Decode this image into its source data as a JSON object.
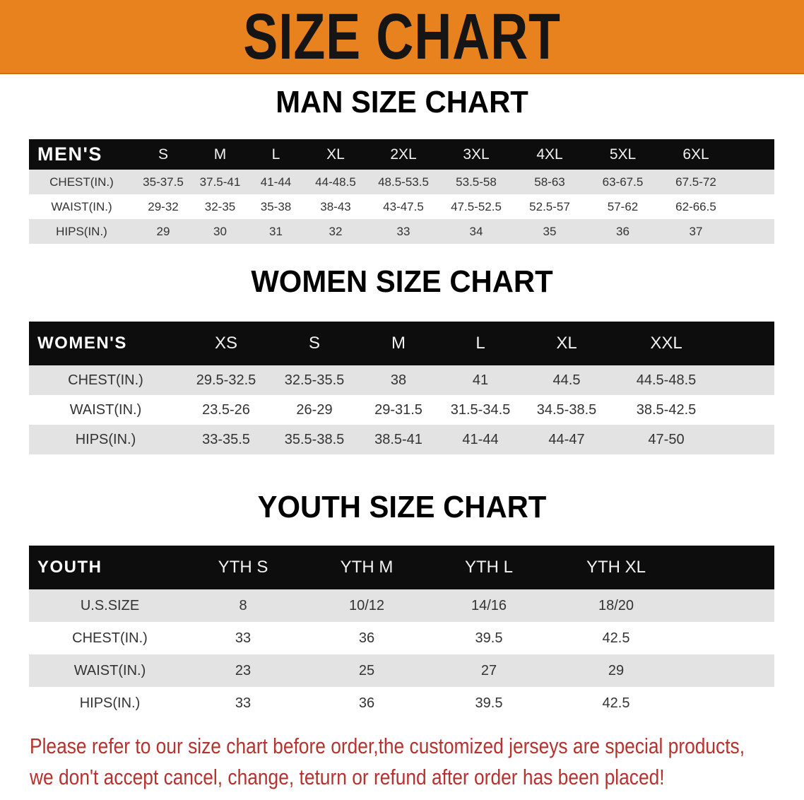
{
  "banner": {
    "title": "SIZE CHART",
    "color": "#e8821e"
  },
  "men": {
    "title": "MAN SIZE CHART",
    "header": [
      "MEN'S",
      "S",
      "M",
      "L",
      "XL",
      "2XL",
      "3XL",
      "4XL",
      "5XL",
      "6XL"
    ],
    "rows": [
      [
        "CHEST(IN.)",
        "35-37.5",
        "37.5-41",
        "41-44",
        "44-48.5",
        "48.5-53.5",
        "53.5-58",
        "58-63",
        "63-67.5",
        "67.5-72"
      ],
      [
        "WAIST(IN.)",
        "29-32",
        "32-35",
        "35-38",
        "38-43",
        "43-47.5",
        "47.5-52.5",
        "52.5-57",
        "57-62",
        "62-66.5"
      ],
      [
        "HIPS(IN.)",
        "29",
        "30",
        "31",
        "32",
        "33",
        "34",
        "35",
        "36",
        "37"
      ]
    ]
  },
  "women": {
    "title": "WOMEN SIZE CHART",
    "header": [
      "WOMEN'S",
      "XS",
      "S",
      "M",
      "L",
      "XL",
      "XXL"
    ],
    "rows": [
      [
        "CHEST(IN.)",
        "29.5-32.5",
        "32.5-35.5",
        "38",
        "41",
        "44.5",
        "44.5-48.5"
      ],
      [
        "WAIST(IN.)",
        "23.5-26",
        "26-29",
        "29-31.5",
        "31.5-34.5",
        "34.5-38.5",
        "38.5-42.5"
      ],
      [
        "HIPS(IN.)",
        "33-35.5",
        "35.5-38.5",
        "38.5-41",
        "41-44",
        "44-47",
        "47-50"
      ]
    ]
  },
  "youth": {
    "title": "YOUTH SIZE CHART",
    "header": [
      "YOUTH",
      "YTH S",
      "YTH M",
      "YTH L",
      "YTH XL"
    ],
    "rows": [
      [
        "U.S.SIZE",
        "8",
        "10/12",
        "14/16",
        "18/20"
      ],
      [
        "CHEST(IN.)",
        "33",
        "36",
        "39.5",
        "42.5"
      ],
      [
        "WAIST(IN.)",
        "23",
        "25",
        "27",
        "29"
      ],
      [
        "HIPS(IN.)",
        "33",
        "36",
        "39.5",
        "42.5"
      ]
    ]
  },
  "footer": {
    "line1": "Please refer to our size chart before order,the customized jerseys are special products,",
    "line2": "we don't accept cancel, change, teturn or refund after order has been placed!",
    "color": "#b5322e"
  }
}
